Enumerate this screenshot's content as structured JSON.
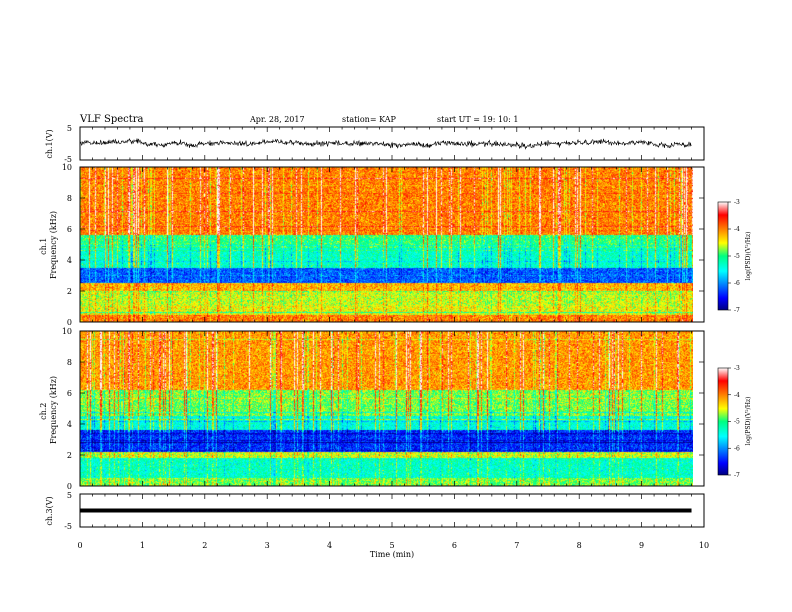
{
  "header": {
    "title": "VLF Spectra",
    "date": "Apr. 28, 2017",
    "station": "station= KAP",
    "start": "start  UT =   19: 10: 1"
  },
  "chart_data": [
    {
      "type": "line",
      "ylabel": "ch.1(V)",
      "ylim": [
        -5,
        5
      ],
      "yticks": [
        "5",
        "-5"
      ],
      "xlim": [
        0,
        10
      ],
      "series": [
        {
          "mean": 0,
          "typical_amplitude": 1.5,
          "x_end": 9.8
        }
      ]
    },
    {
      "type": "heatmap",
      "ylabel": "ch.1\nFrequency (kHz)",
      "ylim": [
        0,
        10
      ],
      "yticks": [
        "10",
        "8",
        "6",
        "4",
        "2",
        "0"
      ],
      "xlim": [
        0,
        10
      ],
      "x_end": 9.8,
      "colorbar": {
        "label": "log(PSD)(V²/Hz)",
        "range": [
          -7,
          -3
        ],
        "ticks": [
          "-3",
          "-4",
          "-5",
          "-6",
          "-7"
        ]
      },
      "bands": [
        {
          "f": [
            0.0,
            0.4
          ],
          "level": -4.0
        },
        {
          "f": [
            0.4,
            1.0
          ],
          "level": -4.5
        },
        {
          "f": [
            1.0,
            2.0
          ],
          "level": -4.6
        },
        {
          "f": [
            2.0,
            2.5
          ],
          "level": -4.2
        },
        {
          "f": [
            2.5,
            3.5
          ],
          "level": -6.2
        },
        {
          "f": [
            3.5,
            4.8
          ],
          "level": -5.3
        },
        {
          "f": [
            4.8,
            5.6
          ],
          "level": -5.0
        },
        {
          "f": [
            5.6,
            10.0
          ],
          "level": -4.0
        }
      ]
    },
    {
      "type": "heatmap",
      "ylabel": "ch.2\nFrequency (kHz)",
      "ylim": [
        0,
        10
      ],
      "yticks": [
        "10",
        "8",
        "6",
        "4",
        "2",
        "0"
      ],
      "xlim": [
        0,
        10
      ],
      "x_end": 9.8,
      "colorbar": {
        "label": "log(PSD)(V²/Hz)",
        "range": [
          -7,
          -3
        ],
        "ticks": [
          "-3",
          "-4",
          "-5",
          "-6",
          "-7"
        ]
      },
      "bands": [
        {
          "f": [
            0.0,
            0.5
          ],
          "level": -4.8
        },
        {
          "f": [
            0.5,
            1.8
          ],
          "level": -5.3
        },
        {
          "f": [
            1.8,
            2.2
          ],
          "level": -4.6
        },
        {
          "f": [
            2.2,
            3.6
          ],
          "level": -6.4
        },
        {
          "f": [
            3.6,
            4.5
          ],
          "level": -5.4
        },
        {
          "f": [
            4.5,
            6.2
          ],
          "level": -4.8
        },
        {
          "f": [
            6.2,
            10.0
          ],
          "level": -4.1
        }
      ]
    },
    {
      "type": "line",
      "ylabel": "ch.3(V)",
      "ylim": [
        -5,
        5
      ],
      "yticks": [
        "5",
        "-5"
      ],
      "xlim": [
        0,
        10
      ],
      "xlabel": "Time (min)",
      "xticks": [
        "0",
        "1",
        "2",
        "3",
        "4",
        "5",
        "6",
        "7",
        "8",
        "9",
        "10"
      ],
      "series": [
        {
          "mean": 0,
          "typical_amplitude": 0.2,
          "x_end": 9.8
        }
      ]
    }
  ]
}
